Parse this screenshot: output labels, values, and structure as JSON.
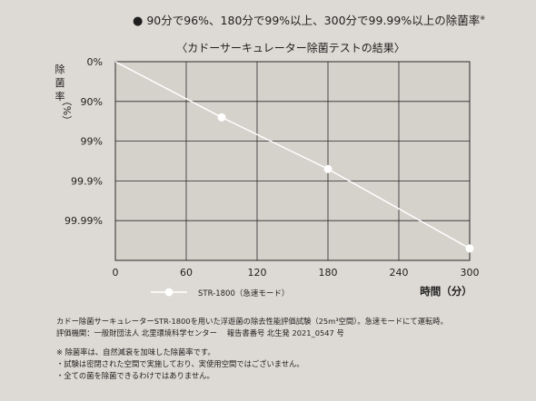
{
  "headline": {
    "text": "90分で96%、180分で99%以上、300分で99.99%以上の除菌率",
    "note_mark": "※"
  },
  "chart_data": {
    "type": "line",
    "title": "〈カドーサーキュレーター除菌テストの結果〉",
    "ylabel_chars": [
      "除",
      "菌",
      "率",
      "（%）"
    ],
    "xlabel": "時間（分）",
    "x_ticks": [
      0,
      60,
      120,
      180,
      240,
      300
    ],
    "xlim": [
      0,
      300
    ],
    "y_tick_labels": [
      "0%",
      "90%",
      "99%",
      "99.9%",
      "99.99%"
    ],
    "y_scale": "log-reduction",
    "ylim_log_reduction": [
      0,
      5
    ],
    "grid": true,
    "legend": "bottom-left",
    "series": [
      {
        "name": "STR-1800（急速モード）",
        "color": "#ffffff",
        "x": [
          0,
          90,
          180,
          300
        ],
        "log_reduction": [
          0,
          1.4,
          2.7,
          4.7
        ],
        "line_end": {
          "x": 300,
          "log_reduction": 4.7
        },
        "markers_at": [
          90,
          180,
          300
        ]
      }
    ]
  },
  "footer": {
    "line1": "カドー除菌サーキュレーターSTR-1800を用いた浮遊菌の除去性能評価試験（25m³空間）。急速モードにて運転時。",
    "line2": "評価機関：一般財団法人 北里環境科学センター　 報告書番号 北生発 2021_0547 号",
    "notes": [
      "※ 除菌率は、自然減衰を加味した除菌率です。",
      "・試験は密閉された空間で実施しており、実使用空間ではございません。",
      "・全ての菌を除菌できるわけではありません。"
    ]
  }
}
